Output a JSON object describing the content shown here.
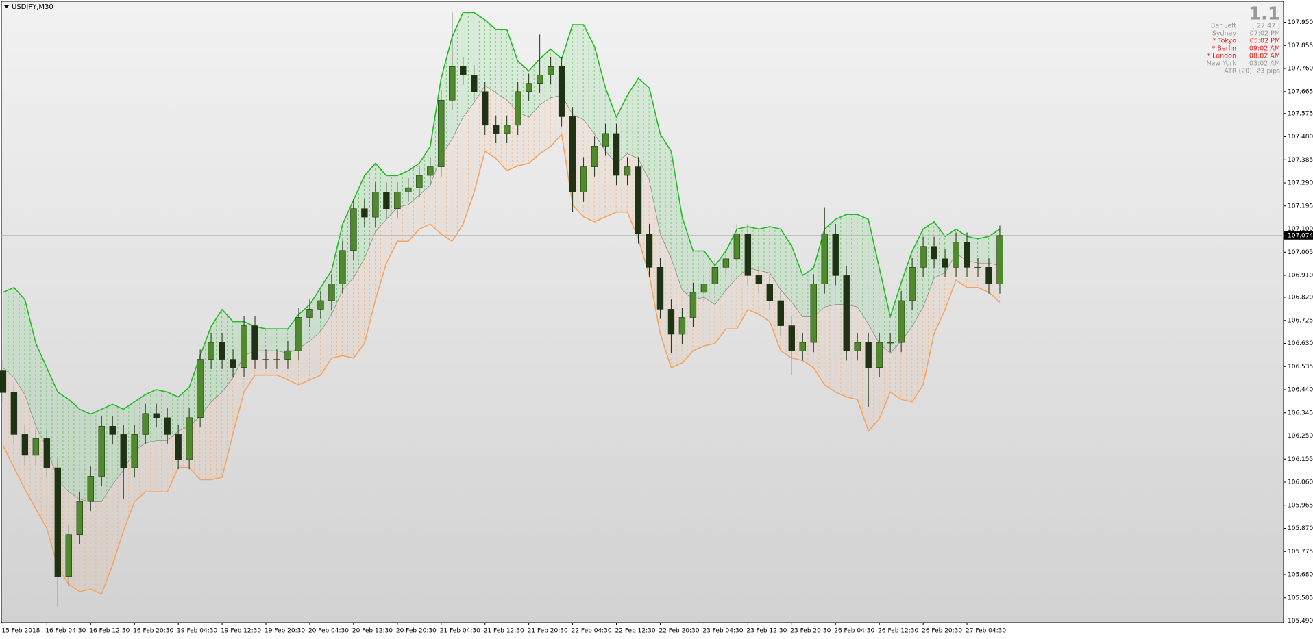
{
  "chart_data": {
    "type": "candlestick",
    "title": "USDJPY,M30",
    "categories": [
      "15 Feb 2018",
      null,
      null,
      null,
      "16 Feb 04:30",
      null,
      null,
      null,
      "16 Feb 12:30",
      null,
      null,
      null,
      "16 Feb 20:30",
      null,
      null,
      null,
      "19 Feb 04:30",
      null,
      null,
      null,
      "19 Feb 12:30",
      null,
      null,
      null,
      "19 Feb 20:30",
      null,
      null,
      null,
      "20 Feb 04:30",
      null,
      null,
      null,
      "20 Feb 12:30",
      null,
      null,
      null,
      "20 Feb 20:30",
      null,
      null,
      null,
      "21 Feb 04:30",
      null,
      null,
      null,
      "21 Feb 12:30",
      null,
      null,
      null,
      "21 Feb 20:30",
      null,
      null,
      null,
      "22 Feb 04:30",
      null,
      null,
      null,
      "22 Feb 12:30",
      null,
      null,
      null,
      "22 Feb 20:30",
      null,
      null,
      null,
      "23 Feb 04:30",
      null,
      null,
      null,
      "23 Feb 12:30",
      null,
      null,
      null,
      "23 Feb 20:30",
      null,
      null,
      null,
      "26 Feb 04:30",
      null,
      null,
      null,
      "26 Feb 12:30",
      null,
      null,
      null,
      "26 Feb 20:30",
      null,
      null,
      null,
      "27 Feb 04:30",
      null,
      null,
      null
    ],
    "open": [
      106.52,
      106.428,
      106.256,
      106.17,
      106.239,
      106.119,
      105.672,
      105.844,
      105.981,
      106.084,
      106.29,
      106.256,
      106.119,
      106.256,
      106.342,
      106.325,
      106.256,
      106.153,
      106.325,
      106.565,
      106.634,
      106.565,
      106.531,
      106.703,
      106.565,
      106.565,
      106.565,
      106.6,
      106.737,
      106.771,
      106.806,
      106.875,
      107.012,
      107.184,
      107.149,
      107.252,
      107.184,
      107.252,
      107.27,
      107.321,
      107.356,
      107.63,
      107.768,
      107.734,
      107.665,
      107.527,
      107.493,
      107.527,
      107.665,
      107.699,
      107.734,
      107.768,
      107.562,
      107.252,
      107.356,
      107.441,
      107.493,
      107.321,
      107.356,
      107.081,
      106.943,
      106.771,
      106.668,
      106.737,
      106.84,
      106.875,
      106.943,
      106.978,
      107.081,
      106.909,
      106.875,
      106.806,
      106.703,
      106.6,
      106.634,
      106.875,
      107.081,
      106.909,
      106.6,
      106.634,
      106.531,
      106.634,
      106.634,
      106.806,
      106.943,
      107.029,
      106.978,
      106.943,
      107.046,
      106.943,
      106.943,
      106.875
    ],
    "high": [
      106.56,
      106.468,
      106.296,
      106.279,
      106.279,
      106.159,
      105.884,
      106.021,
      106.124,
      106.33,
      106.33,
      106.296,
      106.296,
      106.382,
      106.382,
      106.365,
      106.296,
      106.365,
      106.605,
      106.674,
      106.674,
      106.605,
      106.743,
      106.743,
      106.605,
      106.605,
      106.64,
      106.777,
      106.811,
      106.846,
      106.915,
      107.052,
      107.224,
      107.224,
      107.292,
      107.292,
      107.292,
      107.31,
      107.361,
      107.396,
      107.67,
      107.99,
      107.808,
      107.774,
      107.705,
      107.567,
      107.567,
      107.705,
      107.739,
      107.9,
      107.808,
      107.808,
      107.602,
      107.396,
      107.481,
      107.533,
      107.533,
      107.396,
      107.396,
      107.121,
      106.983,
      106.811,
      106.777,
      106.88,
      106.915,
      106.983,
      107.018,
      107.121,
      107.121,
      106.949,
      106.915,
      106.846,
      106.743,
      106.674,
      106.915,
      107.19,
      107.121,
      106.949,
      106.674,
      106.674,
      106.674,
      106.674,
      106.846,
      106.983,
      107.069,
      107.069,
      107.018,
      107.086,
      107.086,
      106.983,
      106.983,
      107.114
    ],
    "low": [
      106.388,
      106.216,
      106.13,
      106.13,
      106.079,
      105.55,
      105.632,
      105.804,
      105.941,
      106.044,
      106.216,
      105.99,
      106.079,
      106.216,
      106.285,
      106.216,
      106.113,
      106.113,
      106.285,
      106.525,
      106.525,
      106.491,
      106.491,
      106.525,
      106.525,
      106.525,
      106.525,
      106.56,
      106.697,
      106.731,
      106.766,
      106.835,
      106.972,
      107.109,
      107.109,
      107.144,
      107.144,
      107.212,
      107.23,
      107.281,
      107.316,
      107.59,
      107.694,
      107.625,
      107.487,
      107.453,
      107.453,
      107.487,
      107.625,
      107.659,
      107.694,
      107.522,
      107.17,
      107.212,
      107.316,
      107.401,
      107.281,
      107.281,
      107.041,
      106.903,
      106.731,
      106.59,
      106.628,
      106.697,
      106.8,
      106.835,
      106.903,
      106.938,
      106.869,
      106.835,
      106.766,
      106.663,
      106.5,
      106.56,
      106.594,
      106.835,
      106.869,
      106.56,
      106.56,
      106.37,
      106.491,
      106.594,
      106.594,
      106.766,
      106.903,
      106.938,
      106.903,
      106.903,
      106.903,
      106.903,
      106.835,
      106.835
    ],
    "close": [
      106.428,
      106.256,
      106.17,
      106.239,
      106.119,
      105.672,
      105.844,
      105.981,
      106.084,
      106.29,
      106.256,
      106.119,
      106.256,
      106.342,
      106.325,
      106.256,
      106.153,
      106.325,
      106.565,
      106.634,
      106.565,
      106.531,
      106.703,
      106.565,
      106.565,
      106.565,
      106.6,
      106.737,
      106.771,
      106.806,
      106.875,
      107.012,
      107.184,
      107.149,
      107.252,
      107.184,
      107.252,
      107.27,
      107.321,
      107.356,
      107.63,
      107.768,
      107.734,
      107.665,
      107.527,
      107.493,
      107.527,
      107.665,
      107.699,
      107.734,
      107.768,
      107.562,
      107.252,
      107.356,
      107.441,
      107.493,
      107.321,
      107.356,
      107.081,
      106.943,
      106.771,
      106.668,
      106.737,
      106.84,
      106.875,
      106.943,
      106.978,
      107.081,
      106.909,
      106.875,
      106.806,
      106.703,
      106.6,
      106.634,
      106.875,
      107.081,
      106.909,
      106.6,
      106.634,
      106.531,
      106.634,
      106.634,
      106.806,
      106.943,
      107.029,
      106.978,
      106.943,
      107.046,
      106.943,
      106.943,
      106.875,
      107.074
    ],
    "up_color": "#4f8a2c",
    "down_color": "#1f3314",
    "wick_color": "#1f3314",
    "bands": [
      {
        "color": "#22bb22",
        "fill": "#22bb22",
        "values": [
          106.84,
          106.86,
          106.81,
          106.63,
          106.53,
          106.43,
          106.4,
          106.36,
          106.34,
          106.36,
          106.38,
          106.36,
          106.39,
          106.42,
          106.44,
          106.43,
          106.41,
          106.45,
          106.58,
          106.7,
          106.77,
          106.72,
          106.72,
          106.7,
          106.69,
          106.69,
          106.69,
          106.75,
          106.79,
          106.86,
          106.93,
          107.12,
          107.22,
          107.32,
          107.37,
          107.32,
          107.32,
          107.34,
          107.37,
          107.44,
          107.72,
          107.89,
          107.99,
          107.99,
          107.96,
          107.92,
          107.92,
          107.79,
          107.75,
          107.8,
          107.84,
          107.8,
          107.94,
          107.94,
          107.85,
          107.68,
          107.56,
          107.65,
          107.72,
          107.68,
          107.49,
          107.42,
          107.15,
          107.01,
          107.01,
          106.95,
          107.01,
          107.1,
          107.11,
          107.1,
          107.11,
          107.1,
          107.03,
          106.91,
          106.94,
          107.1,
          107.14,
          107.16,
          107.16,
          107.14,
          106.94,
          106.74,
          106.88,
          107.01,
          107.1,
          107.13,
          107.07,
          107.1,
          107.07,
          107.06,
          107.07,
          107.1
        ]
      },
      {
        "color": "#8c8c8c",
        "values": [
          106.53,
          106.49,
          106.42,
          106.29,
          106.2,
          106.07,
          106.02,
          105.99,
          105.98,
          105.98,
          106.05,
          106.11,
          106.19,
          106.22,
          106.23,
          106.23,
          106.27,
          106.29,
          106.33,
          106.39,
          106.43,
          106.49,
          106.58,
          106.6,
          106.6,
          106.6,
          106.59,
          106.61,
          106.64,
          106.68,
          106.75,
          106.85,
          106.9,
          106.98,
          107.09,
          107.14,
          107.19,
          107.2,
          107.24,
          107.28,
          107.4,
          107.47,
          107.56,
          107.62,
          107.69,
          107.66,
          107.63,
          107.58,
          107.56,
          107.61,
          107.64,
          107.65,
          107.57,
          107.55,
          107.49,
          107.42,
          107.37,
          107.41,
          107.39,
          107.3,
          107.08,
          106.98,
          106.85,
          106.81,
          106.82,
          106.79,
          106.85,
          106.9,
          106.94,
          106.93,
          106.92,
          106.85,
          106.8,
          106.74,
          106.74,
          106.78,
          106.79,
          106.79,
          106.78,
          106.71,
          106.63,
          106.59,
          106.64,
          106.7,
          106.78,
          106.9,
          106.92,
          107.0,
          106.97,
          106.96,
          106.96,
          106.95
        ]
      },
      {
        "color": "#f4a460",
        "fill": "#f4a460",
        "values": [
          106.21,
          106.12,
          106.03,
          105.95,
          105.87,
          105.71,
          105.64,
          105.61,
          105.62,
          105.6,
          105.72,
          105.86,
          105.98,
          106.02,
          106.02,
          106.02,
          106.12,
          106.12,
          106.07,
          106.07,
          106.08,
          106.26,
          106.43,
          106.5,
          106.5,
          106.5,
          106.48,
          106.46,
          106.48,
          106.5,
          106.57,
          106.58,
          106.57,
          106.63,
          106.81,
          106.96,
          107.05,
          107.05,
          107.1,
          107.12,
          107.08,
          107.05,
          107.12,
          107.25,
          107.42,
          107.39,
          107.34,
          107.36,
          107.37,
          107.41,
          107.44,
          107.49,
          107.2,
          107.15,
          107.13,
          107.15,
          107.17,
          107.17,
          107.06,
          106.91,
          106.67,
          106.53,
          106.55,
          106.6,
          106.62,
          106.63,
          106.69,
          106.69,
          106.77,
          106.75,
          106.72,
          106.6,
          106.57,
          106.56,
          106.53,
          106.46,
          106.43,
          106.41,
          106.4,
          106.27,
          106.32,
          106.43,
          106.4,
          106.39,
          106.46,
          106.67,
          106.77,
          106.89,
          106.86,
          106.86,
          106.84,
          106.8
        ]
      }
    ],
    "xlim": [
      -0.15,
      116.9
    ],
    "ylim": [
      105.483,
      108.036
    ],
    "yticks": [
      {
        "value": 107.95,
        "label": "107.950"
      },
      {
        "value": 107.855,
        "label": "107.855"
      },
      {
        "value": 107.76,
        "label": "107.760"
      },
      {
        "value": 107.665,
        "label": "107.665"
      },
      {
        "value": 107.575,
        "label": "107.575"
      },
      {
        "value": 107.48,
        "label": "107.480"
      },
      {
        "value": 107.385,
        "label": "107.385"
      },
      {
        "value": 107.29,
        "label": "107.290"
      },
      {
        "value": 107.195,
        "label": "107.195"
      },
      {
        "value": 107.1,
        "label": "107.100"
      },
      {
        "value": 107.005,
        "label": "107.005"
      },
      {
        "value": 106.91,
        "label": "106.910"
      },
      {
        "value": 106.82,
        "label": "106.820"
      },
      {
        "value": 106.725,
        "label": "106.725"
      },
      {
        "value": 106.63,
        "label": "106.630"
      },
      {
        "value": 106.535,
        "label": "106.535"
      },
      {
        "value": 106.44,
        "label": "106.440"
      },
      {
        "value": 106.345,
        "label": "106.345"
      },
      {
        "value": 106.25,
        "label": "106.250"
      },
      {
        "value": 106.155,
        "label": "106.155"
      },
      {
        "value": 106.06,
        "label": "106.060"
      },
      {
        "value": 105.965,
        "label": "105.965"
      },
      {
        "value": 105.87,
        "label": "105.870"
      },
      {
        "value": 105.775,
        "label": "105.775"
      },
      {
        "value": 105.68,
        "label": "105.680"
      },
      {
        "value": 105.585,
        "label": "105.585"
      },
      {
        "value": 105.49,
        "label": "105.490"
      }
    ],
    "grid": false,
    "current_price": 107.074,
    "current_price_color": "#b4b4b4",
    "info_panel": {
      "big": "1.1",
      "rows": [
        {
          "label": "Bar Left",
          "value": "[ 27:47 ]",
          "color": "#999999"
        },
        {
          "label": "Sydney",
          "value": "07:02 PM",
          "color": "#999999"
        },
        {
          "label": "* Tokyo",
          "value": "05:02 PM",
          "color": "#e8211b"
        },
        {
          "label": "* Berlin",
          "value": "09:02 AM",
          "color": "#e8211b"
        },
        {
          "label": "* London",
          "value": "08:02 AM",
          "color": "#e8211b"
        },
        {
          "label": "New York",
          "value": "03:02 AM",
          "color": "#999999"
        }
      ],
      "footer": "ATR (20): 23 pips"
    }
  }
}
